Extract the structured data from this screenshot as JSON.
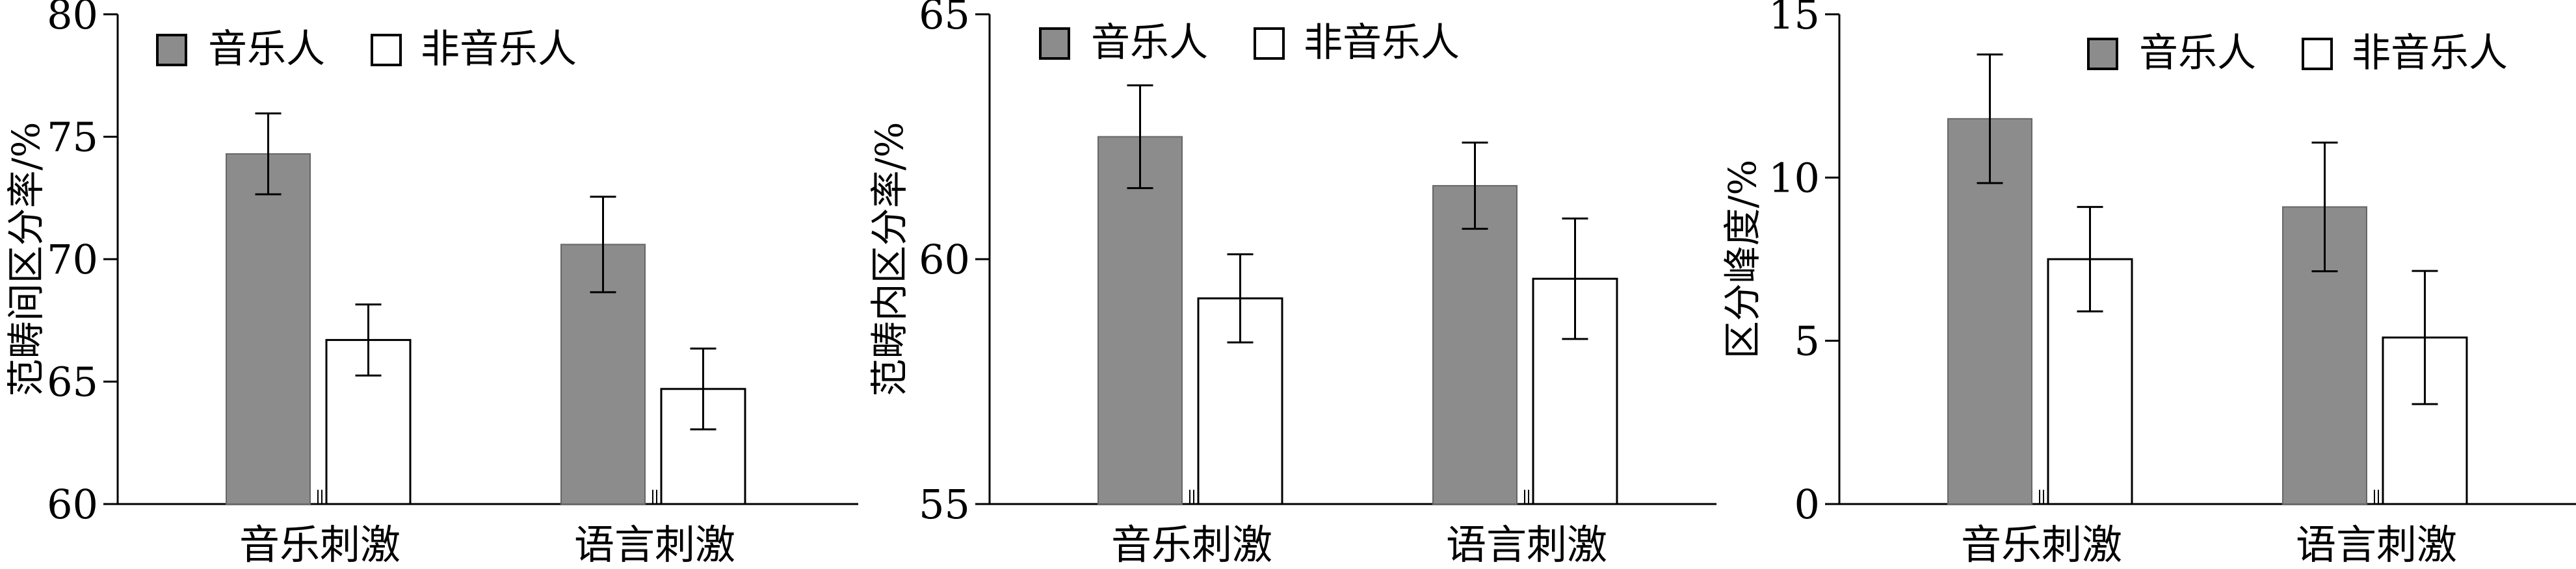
{
  "colors": {
    "musician": "#8c8c8c",
    "non_musician": "#ffffff",
    "axis": "#000000"
  },
  "chart_data": [
    {
      "type": "bar",
      "ylabel": "范畴间区分率/%",
      "categories": [
        "音乐刺激",
        "语言刺激"
      ],
      "ylim": [
        60,
        80
      ],
      "yticks": [
        60,
        65,
        70,
        75,
        80
      ],
      "legend_placement": "top-left",
      "series": [
        {
          "name": "音乐人",
          "values": [
            74.3,
            70.6
          ],
          "errors": [
            1.65,
            1.95
          ]
        },
        {
          "name": "非音乐人",
          "values": [
            66.7,
            64.7
          ],
          "errors": [
            1.45,
            1.65
          ]
        }
      ]
    },
    {
      "type": "bar",
      "ylabel": "范畴内区分率/%",
      "categories": [
        "音乐刺激",
        "语言刺激"
      ],
      "ylim": [
        55,
        65
      ],
      "yticks": [
        55,
        60,
        65
      ],
      "legend_placement": "top-left",
      "series": [
        {
          "name": "音乐人",
          "values": [
            62.5,
            61.5
          ],
          "errors": [
            1.05,
            0.88
          ]
        },
        {
          "name": "非音乐人",
          "values": [
            59.2,
            59.6
          ],
          "errors": [
            0.9,
            1.23
          ]
        }
      ]
    },
    {
      "type": "bar",
      "ylabel": "区分峰度/%",
      "categories": [
        "音乐刺激",
        "语言刺激"
      ],
      "ylim": [
        0,
        15
      ],
      "yticks": [
        0,
        5,
        10,
        15
      ],
      "legend_placement": "top-right",
      "series": [
        {
          "name": "音乐人",
          "values": [
            11.8,
            9.1
          ],
          "errors": [
            1.97,
            1.97
          ]
        },
        {
          "name": "非音乐人",
          "values": [
            7.5,
            5.1
          ],
          "errors": [
            1.6,
            2.04
          ]
        }
      ]
    }
  ]
}
